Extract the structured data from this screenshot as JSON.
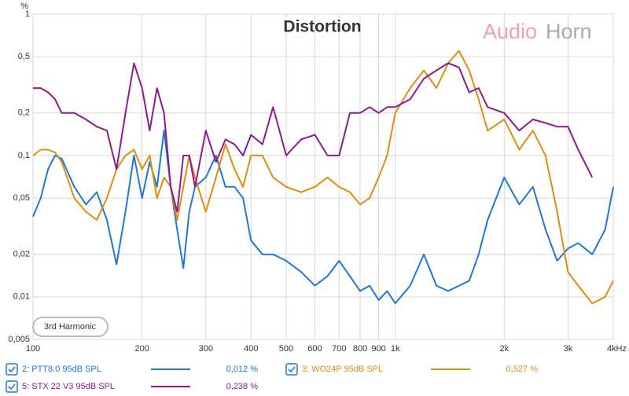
{
  "chart_data": {
    "type": "line",
    "title": "Distortion",
    "y_unit": "%",
    "watermark": [
      "Audio",
      "Horn"
    ],
    "annotation": "3rd Harmonic",
    "log_x": true,
    "log_y": true,
    "grid": true,
    "x": [
      100,
      105,
      110,
      115,
      120,
      130,
      140,
      150,
      160,
      170,
      180,
      190,
      200,
      210,
      220,
      230,
      240,
      250,
      260,
      270,
      280,
      300,
      320,
      340,
      360,
      380,
      400,
      430,
      460,
      500,
      550,
      600,
      650,
      700,
      750,
      800,
      850,
      900,
      950,
      1000,
      1100,
      1200,
      1300,
      1400,
      1500,
      1600,
      1700,
      1800,
      2000,
      2200,
      2400,
      2600,
      2800,
      3000,
      3200,
      3500,
      3800,
      4000
    ],
    "xlim": [
      100,
      4000
    ],
    "ylim": [
      0.005,
      1
    ],
    "xticks": [
      100,
      200,
      300,
      400,
      500,
      600,
      700,
      800,
      900,
      {
        "value": 1000,
        "label": "1k"
      },
      {
        "value": 2000,
        "label": "2k"
      },
      {
        "value": 3000,
        "label": "3k"
      },
      {
        "value": 4000,
        "label": "4kHz"
      }
    ],
    "yticks": [
      1,
      {
        "value": 0.5,
        "label": "0,5"
      },
      {
        "value": 0.2,
        "label": "0,2"
      },
      {
        "value": 0.1,
        "label": "0,1"
      },
      {
        "value": 0.05,
        "label": "0,05"
      },
      {
        "value": 0.02,
        "label": "0,02"
      },
      {
        "value": 0.01,
        "label": "0,01"
      },
      {
        "value": 0.005,
        "label": "0,005"
      }
    ],
    "series": [
      {
        "name": "2: PTT8.0 95dB SPL",
        "color": "#1f78d1",
        "readout": "0,012 %",
        "values": [
          0.037,
          0.05,
          0.08,
          0.1,
          0.095,
          0.06,
          0.045,
          0.055,
          0.035,
          0.017,
          0.04,
          0.1,
          0.05,
          0.09,
          0.06,
          0.15,
          0.06,
          0.03,
          0.016,
          0.04,
          0.06,
          0.07,
          0.1,
          0.06,
          0.06,
          0.05,
          0.025,
          0.02,
          0.02,
          0.018,
          0.015,
          0.012,
          0.014,
          0.018,
          0.014,
          0.011,
          0.012,
          0.0095,
          0.011,
          0.009,
          0.012,
          0.02,
          0.012,
          0.011,
          0.012,
          0.013,
          0.02,
          0.035,
          0.07,
          0.045,
          0.06,
          0.03,
          0.018,
          0.022,
          0.024,
          0.02,
          0.03,
          0.06
        ]
      },
      {
        "name": "3: WO24P 95dB SPL",
        "color": "#de8c12",
        "readout": "0,527 %",
        "values": [
          0.1,
          0.11,
          0.11,
          0.105,
          0.09,
          0.05,
          0.04,
          0.035,
          0.05,
          0.08,
          0.1,
          0.11,
          0.08,
          0.1,
          0.05,
          0.07,
          0.06,
          0.035,
          0.06,
          0.1,
          0.07,
          0.04,
          0.07,
          0.12,
          0.08,
          0.06,
          0.1,
          0.1,
          0.07,
          0.06,
          0.055,
          0.06,
          0.07,
          0.06,
          0.055,
          0.045,
          0.05,
          0.07,
          0.1,
          0.2,
          0.3,
          0.4,
          0.3,
          0.45,
          0.55,
          0.4,
          0.25,
          0.15,
          0.18,
          0.11,
          0.15,
          0.1,
          0.04,
          0.015,
          0.012,
          0.009,
          0.01,
          0.013
        ]
      },
      {
        "name": "5: STX 22 V3  95dB SPL",
        "color": "#8e1a8e",
        "readout": "0,238 %",
        "values": [
          0.3,
          0.3,
          0.28,
          0.25,
          0.2,
          0.2,
          0.18,
          0.16,
          0.15,
          0.08,
          0.2,
          0.45,
          0.3,
          0.15,
          0.3,
          0.2,
          0.06,
          0.04,
          0.1,
          0.1,
          0.06,
          0.15,
          0.09,
          0.13,
          0.12,
          0.1,
          0.14,
          0.12,
          0.22,
          0.1,
          0.13,
          0.14,
          0.1,
          0.1,
          0.2,
          0.2,
          0.22,
          0.2,
          0.22,
          0.22,
          0.25,
          0.35,
          0.4,
          0.45,
          0.42,
          0.28,
          0.3,
          0.22,
          0.2,
          0.15,
          0.18,
          0.17,
          0.16,
          0.16,
          0.11,
          0.07,
          null,
          null
        ]
      }
    ]
  }
}
